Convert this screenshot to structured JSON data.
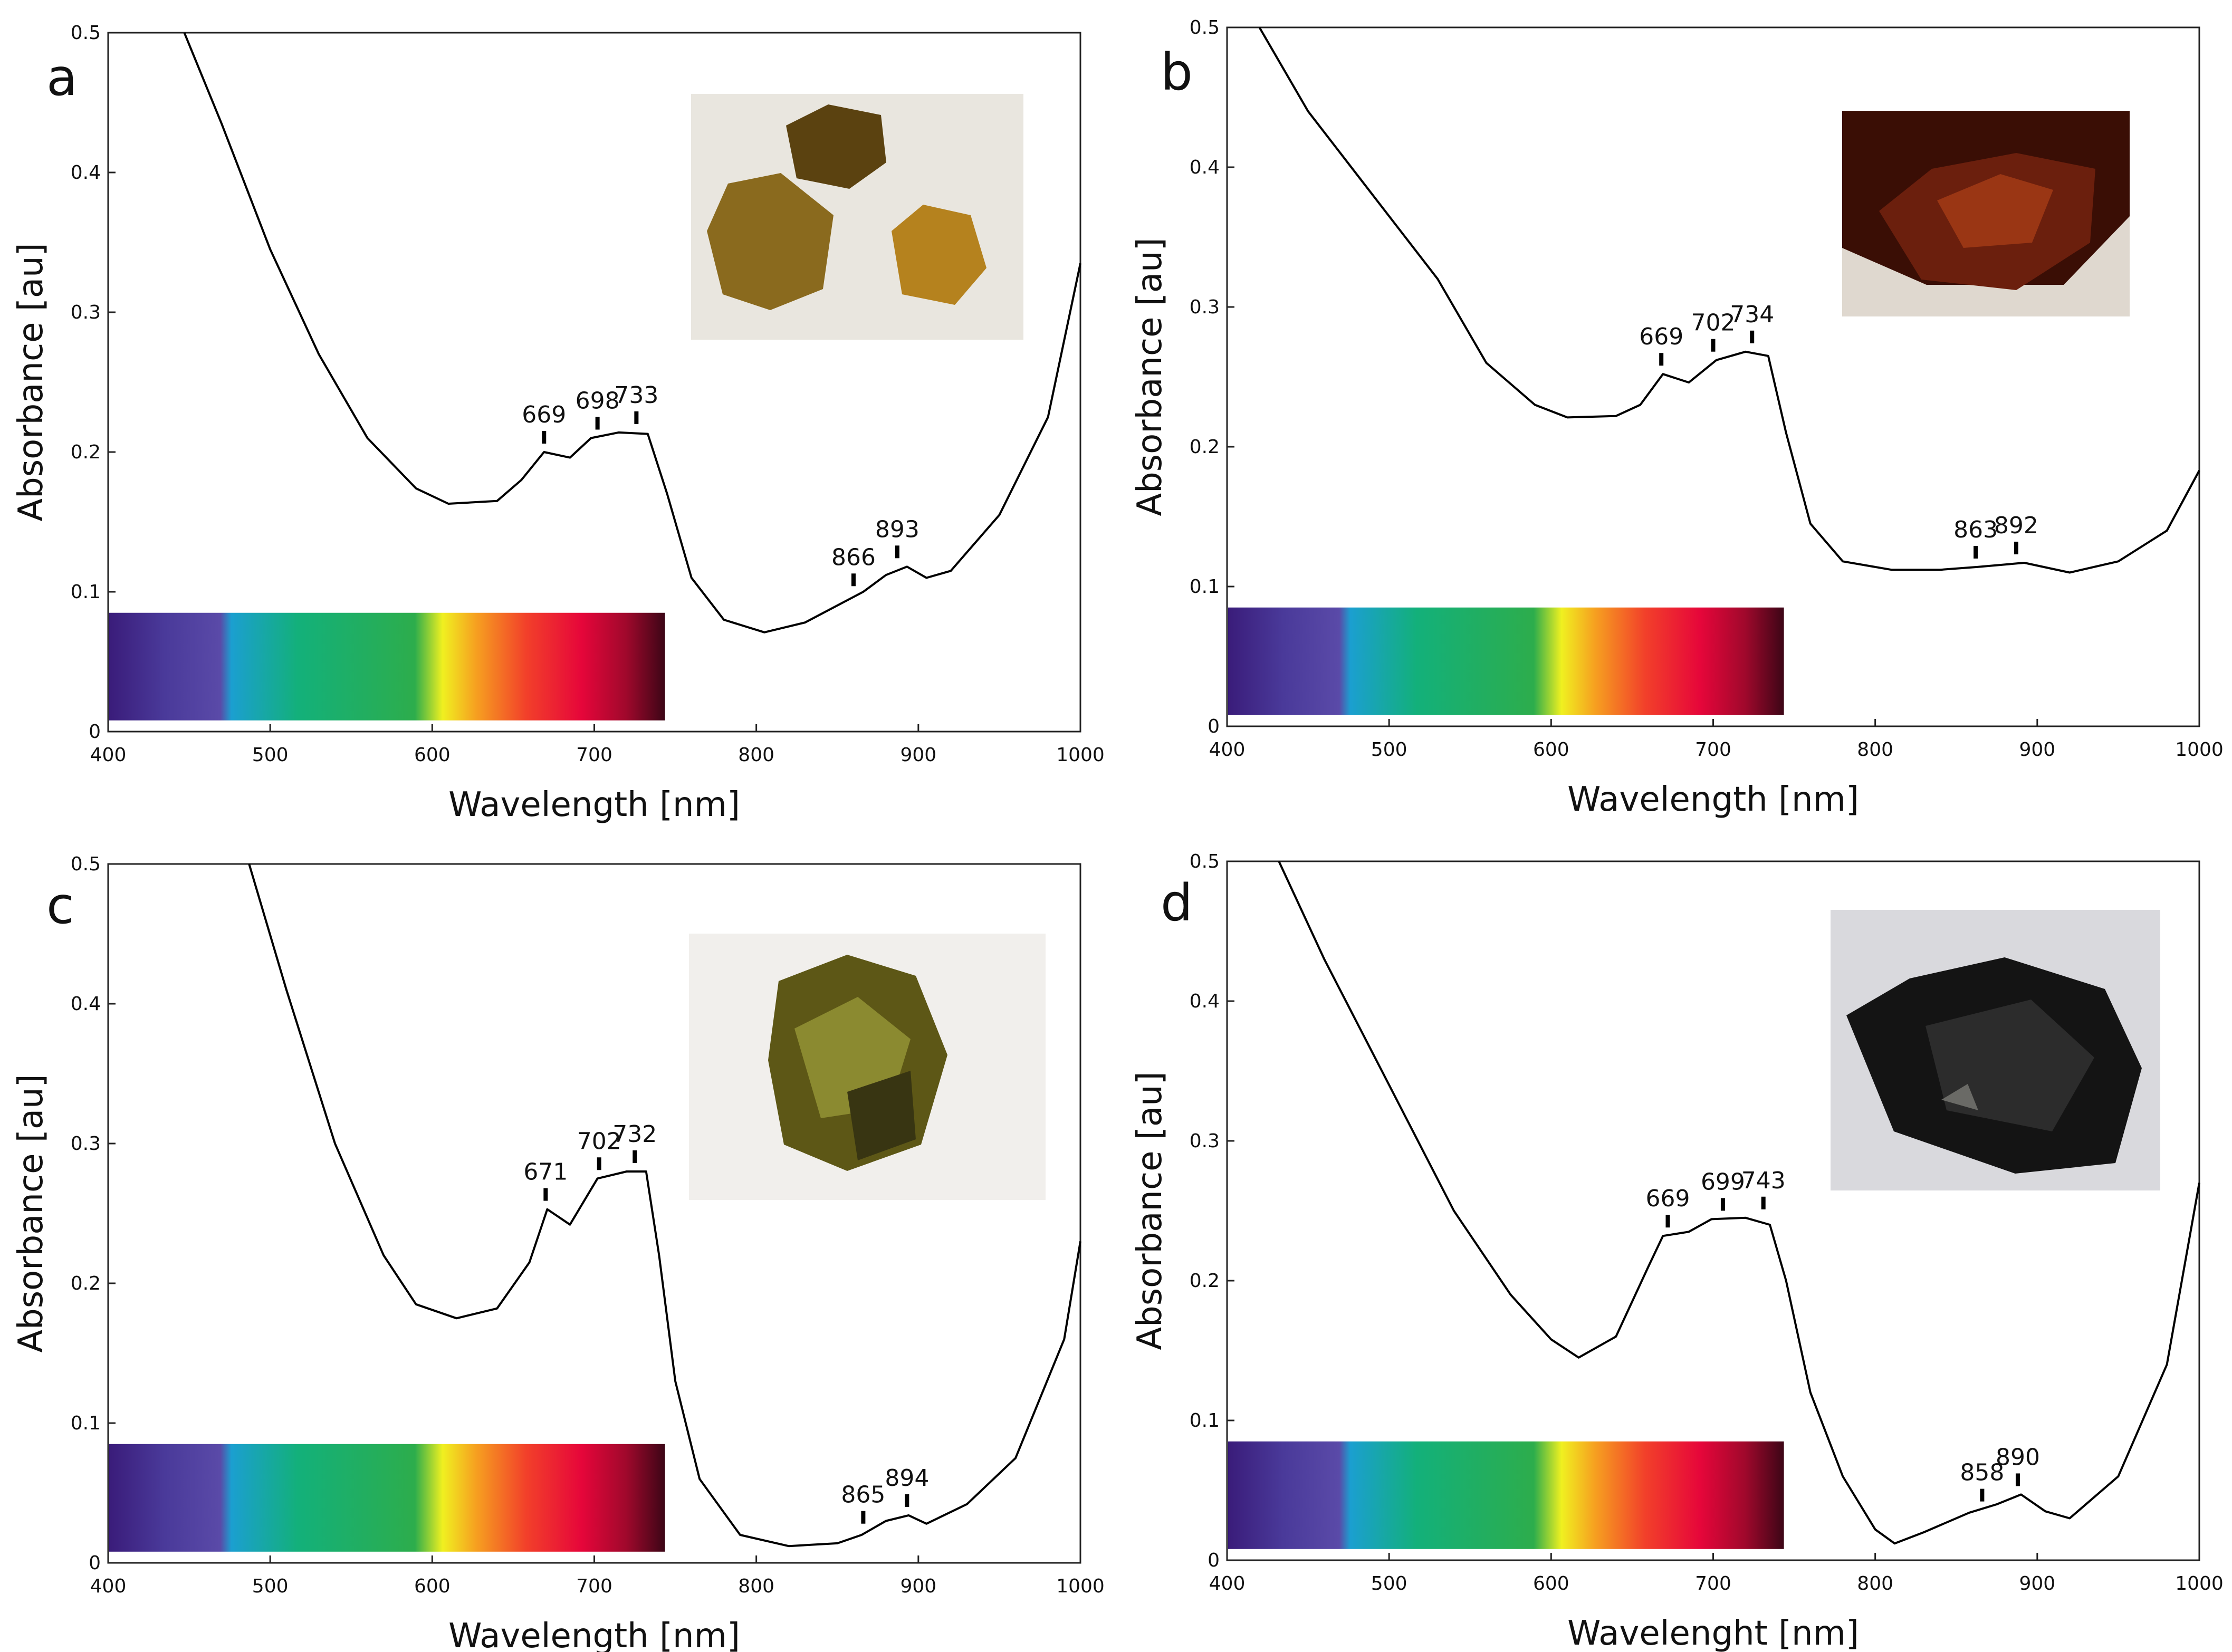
{
  "chart_data": [
    {
      "type": "line",
      "panel": "a",
      "xlabel": "Wavelength [nm]",
      "ylabel": "Absorbance [au]",
      "xlim": [
        400,
        1000
      ],
      "ylim": [
        0,
        0.5
      ],
      "xticks": [
        400,
        500,
        600,
        700,
        800,
        900,
        1000
      ],
      "yticks": [
        0,
        0.1,
        0.2,
        0.3,
        0.4,
        0.5
      ],
      "series": [
        {
          "name": "spectrum",
          "x": [
            447,
            470,
            500,
            530,
            560,
            590,
            610,
            640,
            655,
            669,
            685,
            698,
            715,
            733,
            745,
            760,
            780,
            805,
            830,
            866,
            880,
            893,
            905,
            920,
            950,
            980,
            1000
          ],
          "y": [
            0.5,
            0.435,
            0.345,
            0.27,
            0.21,
            0.174,
            0.163,
            0.165,
            0.18,
            0.2,
            0.196,
            0.21,
            0.214,
            0.213,
            0.17,
            0.11,
            0.08,
            0.071,
            0.078,
            0.1,
            0.112,
            0.118,
            0.11,
            0.115,
            0.155,
            0.225,
            0.335
          ]
        }
      ],
      "peaks": [
        {
          "label": "669",
          "x": 669,
          "y": 0.2
        },
        {
          "label": "698",
          "x": 702,
          "y": 0.21
        },
        {
          "label": "733",
          "x": 726,
          "y": 0.214
        },
        {
          "label": "866",
          "x": 860,
          "y": 0.098
        },
        {
          "label": "893",
          "x": 887,
          "y": 0.118
        }
      ],
      "inset_photo": "yellow-brown garnet crystals on white matrix",
      "photo_colors": [
        "#e9e6df",
        "#8a6a1e",
        "#5b4210",
        "#b5821e"
      ]
    },
    {
      "type": "line",
      "panel": "b",
      "xlabel": "Wavelength [nm]",
      "ylabel": "Absorbance [au]",
      "xlim": [
        400,
        1000
      ],
      "ylim": [
        0,
        0.5
      ],
      "xticks": [
        400,
        500,
        600,
        700,
        800,
        900,
        1000
      ],
      "yticks": [
        0,
        0.1,
        0.2,
        0.3,
        0.4,
        0.5
      ],
      "series": [
        {
          "name": "spectrum",
          "x": [
            420,
            450,
            490,
            530,
            560,
            590,
            610,
            640,
            655,
            669,
            685,
            702,
            720,
            734,
            745,
            760,
            780,
            810,
            840,
            863,
            892,
            920,
            950,
            980,
            1000
          ],
          "y": [
            0.5,
            0.44,
            0.38,
            0.32,
            0.26,
            0.23,
            0.221,
            0.222,
            0.23,
            0.252,
            0.246,
            0.262,
            0.268,
            0.265,
            0.21,
            0.145,
            0.118,
            0.112,
            0.112,
            0.114,
            0.117,
            0.11,
            0.118,
            0.14,
            0.183
          ]
        }
      ],
      "peaks": [
        {
          "label": "669",
          "x": 668,
          "y": 0.252
        },
        {
          "label": "702",
          "x": 700,
          "y": 0.262
        },
        {
          "label": "734",
          "x": 724,
          "y": 0.268
        },
        {
          "label": "863",
          "x": 862,
          "y": 0.114
        },
        {
          "label": "892",
          "x": 887,
          "y": 0.117
        }
      ],
      "inset_photo": "red-brown garnet crystal cluster",
      "photo_colors": [
        "#dfd8cf",
        "#6b1f0d",
        "#9a3614",
        "#3a0e05"
      ]
    },
    {
      "type": "line",
      "panel": "c",
      "xlabel": "Wavelength [nm]",
      "ylabel": "Absorbance [au]",
      "xlim": [
        400,
        1000
      ],
      "ylim": [
        0,
        0.5
      ],
      "xticks": [
        400,
        500,
        600,
        700,
        800,
        900,
        1000
      ],
      "yticks": [
        0,
        0.1,
        0.2,
        0.3,
        0.4,
        0.5
      ],
      "series": [
        {
          "name": "spectrum",
          "x": [
            487,
            510,
            540,
            570,
            590,
            615,
            640,
            660,
            671,
            685,
            702,
            720,
            732,
            740,
            750,
            765,
            790,
            820,
            850,
            865,
            880,
            894,
            905,
            930,
            960,
            990,
            1000
          ],
          "y": [
            0.5,
            0.41,
            0.3,
            0.22,
            0.185,
            0.175,
            0.182,
            0.215,
            0.253,
            0.242,
            0.275,
            0.28,
            0.28,
            0.22,
            0.13,
            0.06,
            0.02,
            0.012,
            0.014,
            0.02,
            0.03,
            0.034,
            0.028,
            0.042,
            0.075,
            0.16,
            0.23
          ]
        }
      ],
      "peaks": [
        {
          "label": "671",
          "x": 670,
          "y": 0.253
        },
        {
          "label": "702",
          "x": 703,
          "y": 0.275
        },
        {
          "label": "732",
          "x": 725,
          "y": 0.28
        },
        {
          "label": "865",
          "x": 866,
          "y": 0.022
        },
        {
          "label": "894",
          "x": 893,
          "y": 0.034
        }
      ],
      "inset_photo": "olive-green garnet crystal on white background",
      "photo_colors": [
        "#f1efec",
        "#5d5716",
        "#383512",
        "#8b8a30"
      ]
    },
    {
      "type": "line",
      "panel": "d",
      "xlabel": "Wavelenght [nm]",
      "ylabel": "Absorbance [au]",
      "xlim": [
        400,
        1000
      ],
      "ylim": [
        0,
        0.5
      ],
      "xticks": [
        400,
        500,
        600,
        700,
        800,
        900,
        1000
      ],
      "yticks": [
        0,
        0.1,
        0.2,
        0.3,
        0.4,
        0.5
      ],
      "series": [
        {
          "name": "spectrum",
          "x": [
            432,
            460,
            500,
            540,
            575,
            600,
            617,
            640,
            660,
            669,
            685,
            699,
            720,
            735,
            745,
            760,
            780,
            800,
            812,
            830,
            858,
            875,
            890,
            905,
            920,
            950,
            980,
            1000
          ],
          "y": [
            0.5,
            0.43,
            0.34,
            0.25,
            0.19,
            0.158,
            0.145,
            0.16,
            0.21,
            0.232,
            0.235,
            0.244,
            0.245,
            0.24,
            0.2,
            0.12,
            0.06,
            0.022,
            0.012,
            0.02,
            0.034,
            0.04,
            0.047,
            0.035,
            0.03,
            0.06,
            0.14,
            0.27
          ]
        }
      ],
      "peaks": [
        {
          "label": "669",
          "x": 672,
          "y": 0.232
        },
        {
          "label": "699",
          "x": 706,
          "y": 0.244
        },
        {
          "label": "743",
          "x": 731,
          "y": 0.245
        },
        {
          "label": "858",
          "x": 866,
          "y": 0.036
        },
        {
          "label": "890",
          "x": 888,
          "y": 0.047
        }
      ],
      "inset_photo": "black shiny garnet (melanite) fragment",
      "photo_colors": [
        "#d9d9dd",
        "#141414",
        "#2c2c2c",
        "#6a6a66"
      ]
    }
  ],
  "spectrum_bar_colors": [
    "#3a1c7a",
    "#5a4aa8",
    "#1b9fd0",
    "#13b07a",
    "#2dad4c",
    "#f0f020",
    "#f6a020",
    "#f2402a",
    "#e6063a",
    "#a0082c",
    "#3c0616"
  ]
}
